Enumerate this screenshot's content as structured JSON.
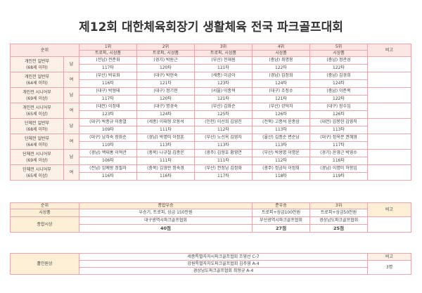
{
  "title": "제12회 대한체육회장기 생활체육 전국 파크골프대회",
  "header": {
    "rank": "순위",
    "places": [
      "1위",
      "2위",
      "3위",
      "4위",
      "5위"
    ],
    "note": "비고",
    "sub": [
      "트로피, 시상품",
      "트로피, 시상품",
      "트로피, 시상품",
      "시상품",
      "시상품"
    ]
  },
  "groups": [
    {
      "label": "개인전 일반부\n(68세 이하)",
      "gender": "남",
      "entries": [
        "(전남) 전준화",
        "(경기) 박원근",
        "(부산) 전재원",
        "(충남) 최명용",
        "(충남) 정관성"
      ],
      "scores": [
        "117타",
        "120타",
        "121타",
        "122타",
        "122타"
      ]
    },
    {
      "label": "개인전 일반부\n(64세 이하)",
      "gender": "여",
      "entries": [
        "(부산) 박유화",
        "(대구) 박현숙",
        "(세종) 이금아",
        "(경남) 김정화",
        "(충남) 김경희"
      ],
      "scores": [
        "116타",
        "121타",
        "123타",
        "124타",
        "124타"
      ]
    },
    {
      "label": "개인전 시니어부\n(69세 이상)",
      "gender": "남",
      "entries": [
        "(대구) 박형태",
        "(대구) 정기현",
        "(서울) 이종혁",
        "(대구) 조정수",
        "(충남) 이준복"
      ],
      "scores": [
        "117타",
        "120타",
        "121타",
        "121타",
        "122타"
      ]
    },
    {
      "label": "개인전 시니어부\n(65세 이상)",
      "gender": "여",
      "entries": [
        "(대전) 이정태",
        "(대구) 명경숙",
        "(부산) 김화순",
        "(부산) 강덕자",
        "(대구) 장수임"
      ],
      "scores": [
        "123타",
        "124타",
        "125타",
        "126타",
        "126타"
      ]
    },
    {
      "label": "단체전 일반부\n(68세 이하)",
      "gender": "남",
      "entries": [
        "(대구) 박종규 이종열",
        "(세종) 이태형 오동석",
        "(인천) 이선희 김영진",
        "(전북) 고종석 윤종삼",
        "(대전) 김봉헌 김영직"
      ],
      "scores": [
        "109타",
        "111타",
        "112타",
        "113타",
        "113타"
      ]
    },
    {
      "label": "단체전 일반부\n(64세 이하)",
      "gender": "여",
      "entries": [
        "(대구) 남하숙 장화순",
        "(경남) 박명미 이정훈",
        "(부산) 노선옥 김영자",
        "(울산) 김종순 변순남",
        "(대구) 정옥분 권혜영"
      ],
      "scores": [
        "110타",
        "113타",
        "113타",
        "113타",
        "117타"
      ]
    },
    {
      "label": "단체전 시니어부\n(69세 이상)",
      "gender": "남",
      "entries": [
        "(경남) 백태홍 이혁관",
        "(충북) 나규철 김종운",
        "(광주) 김형호 황영연",
        "(부산) 박용명 이명운",
        "(경기) 윤영근 박영수"
      ],
      "scores": [
        "106타",
        "111타",
        "111타",
        "112타",
        "116타"
      ]
    },
    {
      "label": "단체전 시니어부\n(65세 이상)",
      "gender": "여",
      "entries": [
        "(전남) 임예왕 정필자",
        "(충북) 김영란 정숙경",
        "(부산) 권정남 김정화",
        "(광주) 정금자 이정희",
        "(경남) 이명미 허향임"
      ],
      "scores": [
        "116타",
        "116타",
        "117타",
        "118타",
        "119타"
      ]
    }
  ],
  "overall": {
    "rank_label": "순위",
    "first": "종합우승",
    "second": "준우승",
    "third": "3위",
    "prize_label": "시상품",
    "first_prize": "우승기, 트로피, 상금 150만원",
    "second_prize": "트로피+상금100만원",
    "third_prize": "트로피+상금50만원",
    "team_label": "종합시상",
    "first_team": "대구광역시파크골프협회",
    "second_team": "부산광역시파크골프협회",
    "third_team": "경상남도파크골프협회",
    "first_pts": "40점",
    "second_pts": "27점",
    "third_pts": "25점",
    "note": "비고"
  },
  "bottom": {
    "label": "홀인원상",
    "lines": [
      "세종특별자치시파크골프협회 조영선 C-7",
      "강원특별자치도파크골프협회 김주영 A-4",
      "경상남도파크골프협회 최형규 A-4"
    ],
    "note": "비고",
    "count": "3명"
  }
}
